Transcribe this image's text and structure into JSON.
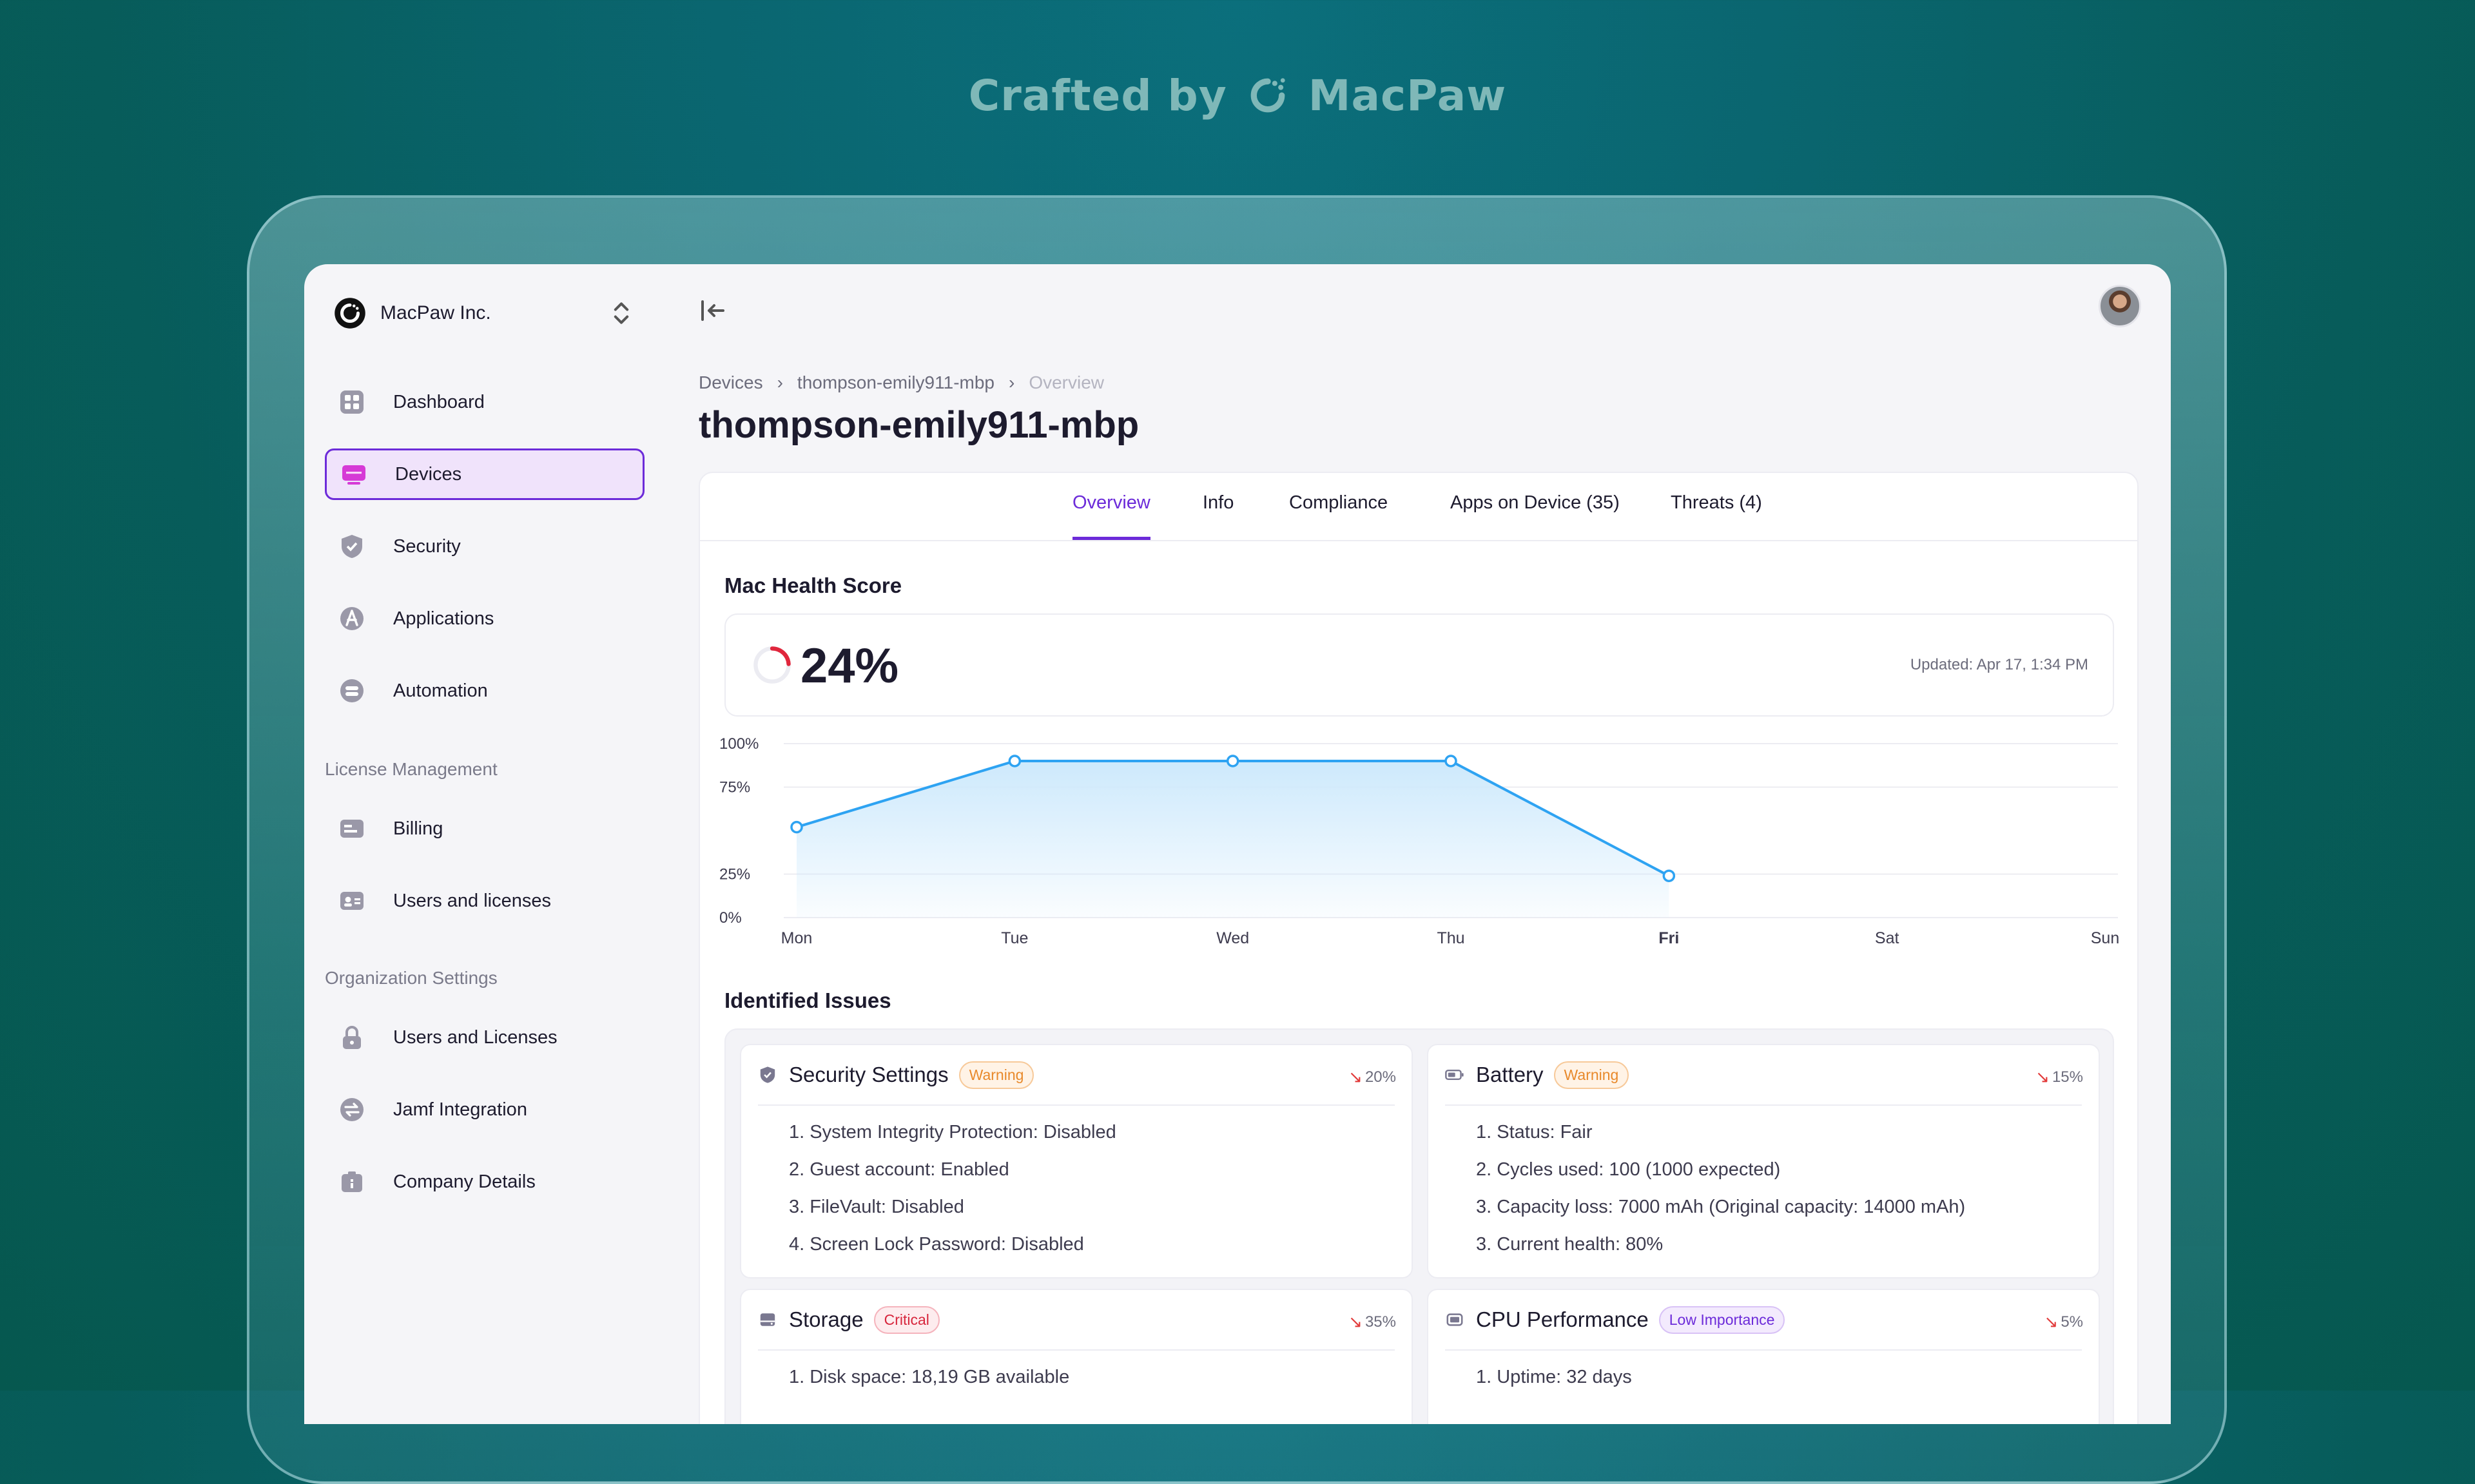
{
  "tagline": {
    "prefix": "Crafted by",
    "brand": "MacPaw"
  },
  "sidebar": {
    "org_name": "MacPaw Inc.",
    "main_items": [
      {
        "label": "Dashboard",
        "icon": "dashboard-icon"
      },
      {
        "label": "Devices",
        "icon": "devices-icon",
        "active": true
      },
      {
        "label": "Security",
        "icon": "shield-icon"
      },
      {
        "label": "Applications",
        "icon": "applications-icon"
      },
      {
        "label": "Automation",
        "icon": "automation-icon"
      }
    ],
    "license_section": "License Management",
    "license_items": [
      {
        "label": "Billing",
        "icon": "billing-icon"
      },
      {
        "label": "Users and licenses",
        "icon": "users-licenses-icon"
      }
    ],
    "org_section": "Organization Settings",
    "org_items": [
      {
        "label": "Users and Licenses",
        "icon": "lock-icon"
      },
      {
        "label": "Jamf Integration",
        "icon": "integration-icon"
      },
      {
        "label": "Company Details",
        "icon": "company-icon"
      }
    ]
  },
  "breadcrumb": [
    "Devices",
    "thompson-emily911-mbp",
    "Overview"
  ],
  "page_title": "thompson-emily911-mbp",
  "tabs": [
    "Overview",
    "Info",
    "Compliance",
    "Apps on Device (35)",
    "Threats (4)"
  ],
  "health": {
    "title": "Mac Health Score",
    "score": "24%",
    "score_fraction": 0.24,
    "updated": "Updated: Apr 17, 1:34 PM"
  },
  "chart_data": {
    "type": "area",
    "categories": [
      "Mon",
      "Tue",
      "Wed",
      "Thu",
      "Fri",
      "Sat",
      "Sun"
    ],
    "values": [
      52,
      90,
      90,
      90,
      24,
      null,
      null
    ],
    "highlight_category": "Fri",
    "y_ticks": [
      "100%",
      "75%",
      "25%",
      "0%"
    ],
    "ylim": [
      0,
      100
    ],
    "grid": true,
    "colors": {
      "line": "#2ea3f2",
      "fill": "#cde9fc"
    }
  },
  "issues": {
    "title": "Identified Issues",
    "cards": [
      {
        "title": "Security Settings",
        "badge": "Warning",
        "badge_type": "warning",
        "trend": "20%",
        "icon": "shield-icon",
        "items": [
          "1. System Integrity Protection: Disabled",
          "2. Guest account: Enabled",
          "3. FileVault: Disabled",
          "4. Screen Lock Password: Disabled"
        ]
      },
      {
        "title": "Battery",
        "badge": "Warning",
        "badge_type": "warning",
        "trend": "15%",
        "icon": "battery-icon",
        "items": [
          "1. Status: Fair",
          "2. Cycles used: 100 (1000 expected)",
          "3. Capacity loss: 7000 mAh (Original capacity: 14000 mAh)",
          "3. Current health: 80%"
        ]
      },
      {
        "title": "Storage",
        "badge": "Critical",
        "badge_type": "critical",
        "trend": "35%",
        "icon": "storage-icon",
        "items": [
          "1. Disk space: 18,19 GB available"
        ]
      },
      {
        "title": "CPU Performance",
        "badge": "Low Importance",
        "badge_type": "low",
        "trend": "5%",
        "icon": "cpu-icon",
        "items": [
          "1. Uptime: 32 days"
        ]
      }
    ]
  }
}
